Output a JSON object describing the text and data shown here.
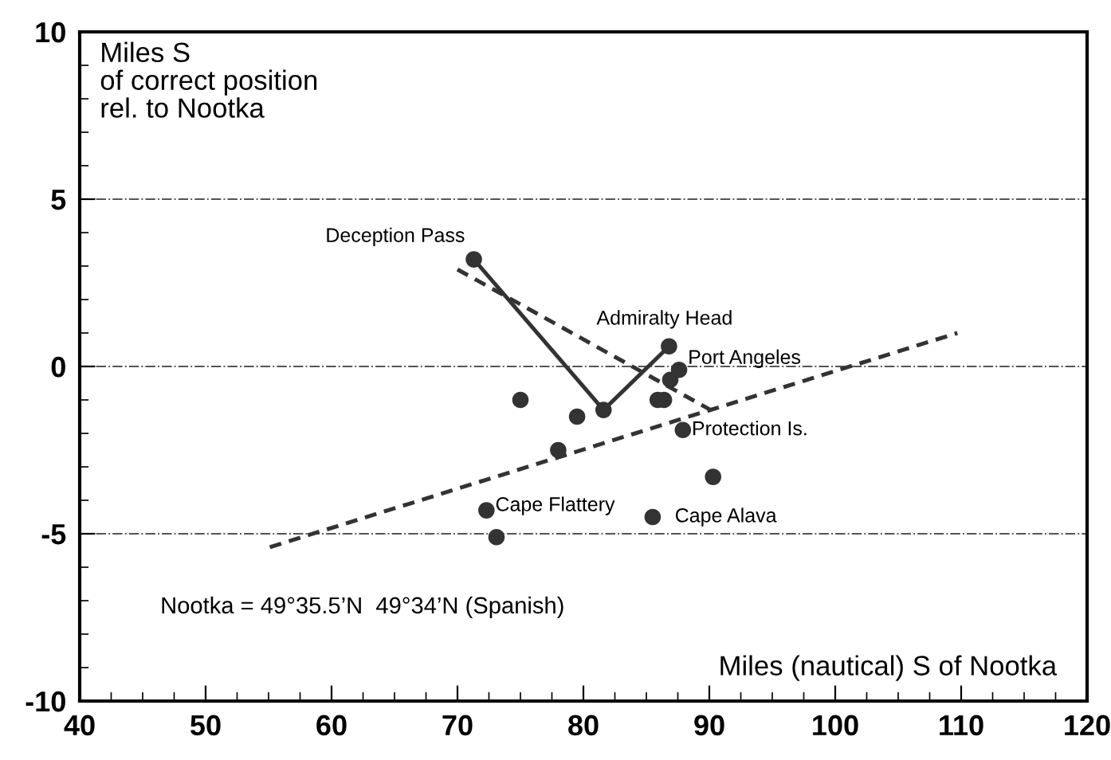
{
  "chart_data": {
    "type": "scatter",
    "ylabel": "Miles S\nof correct position\nrel. to Nootka",
    "xlabel": "Miles (nautical) S of Nootka",
    "xlim": [
      40,
      120
    ],
    "xticks": [
      40,
      50,
      60,
      70,
      80,
      90,
      100,
      110,
      120
    ],
    "ylim": [
      -10,
      10
    ],
    "yticks": [
      -10,
      -5,
      0,
      5,
      10
    ],
    "grid": "y",
    "series": [
      {
        "marker": "circle",
        "color": "#333333",
        "x": [
          71.3,
          81.6,
          86.8,
          87.6,
          86.9,
          85.9,
          86.4,
          87.9,
          90.3,
          75.0,
          79.5,
          78.0,
          72.3,
          73.1,
          85.5
        ],
        "values": [
          3.2,
          -1.3,
          0.6,
          -0.1,
          -0.4,
          -1.0,
          -1.0,
          -1.9,
          -3.3,
          -1.0,
          -1.5,
          -2.5,
          -4.3,
          -5.1,
          -4.5
        ]
      },
      {
        "type": "line",
        "line_style": "solid",
        "color": "#333333",
        "x": [
          71.3,
          81.6,
          86.8
        ],
        "values": [
          3.2,
          -1.3,
          0.6
        ]
      },
      {
        "type": "line",
        "line_style": "dashed",
        "color": "#333333",
        "x": [
          70.0,
          90.1
        ],
        "values": [
          2.9,
          -1.3
        ]
      },
      {
        "type": "line",
        "line_style": "dashed",
        "color": "#333333",
        "x": [
          55.1,
          109.7
        ],
        "values": [
          -5.4,
          1.0
        ]
      }
    ],
    "annotations": [
      {
        "text": "Deception Pass",
        "x": 71.3,
        "y": 3.2
      },
      {
        "text": "Admiralty Head",
        "x": 86.8,
        "y": 0.6
      },
      {
        "text": "Port Angeles",
        "x": 87.6,
        "y": -0.1
      },
      {
        "text": "Protection Is.",
        "x": 87.9,
        "y": -1.9
      },
      {
        "text": "Cape Flattery",
        "x": 72.3,
        "y": -4.3
      },
      {
        "text": "Cape Alava",
        "x": 85.5,
        "y": -4.5
      },
      "Nootka = 49°35.5’N  49°34’N (Spanish)"
    ]
  }
}
